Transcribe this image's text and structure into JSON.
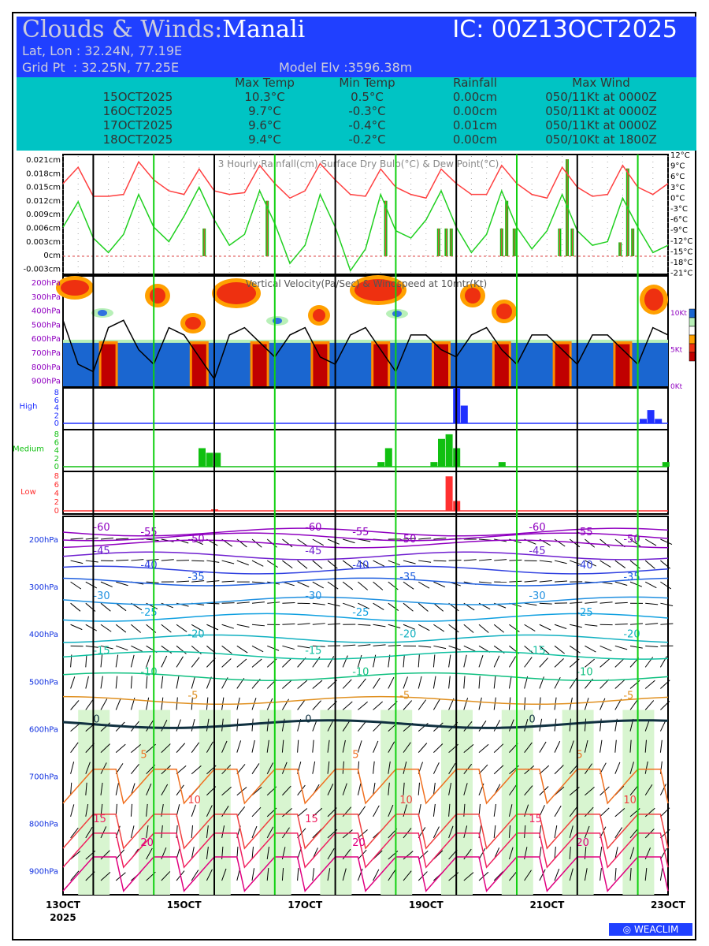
{
  "header": {
    "title_prefix": "Clouds & Winds:",
    "station": "Manali",
    "ic": "IC: 00Z13OCT2025",
    "latlon": "Lat, Lon : 32.24N, 77.19E",
    "gridpt": "Grid Pt  : 32.25N, 77.25E",
    "elev": "Model Elv :3596.38m"
  },
  "table": {
    "headers": [
      "Max Temp",
      "Min Temp",
      "Rainfall",
      "Max Wind"
    ],
    "rows": [
      [
        "15OCT2025",
        "10.3°C",
        "0.5°C",
        "0.00cm",
        "050/11Kt at 0000Z"
      ],
      [
        "16OCT2025",
        "9.7°C",
        "-0.3°C",
        "0.00cm",
        "050/11Kt at 0000Z"
      ],
      [
        "17OCT2025",
        "9.6°C",
        "-0.4°C",
        "0.01cm",
        "050/11Kt at 0000Z"
      ],
      [
        "18OCT2025",
        "9.4°C",
        "-0.2°C",
        "0.00cm",
        "050/10Kt at 1800Z"
      ]
    ]
  },
  "chart_data": [
    {
      "type": "line",
      "title": "3 Hourly Rainfall(cm)  Surface Dry Bulb(°C)   & Dew Point(°C)",
      "x_hours_step": 6,
      "rain_axis": {
        "ticks": [
          "0.021cm",
          "0.018cm",
          "0.015cm",
          "0.012cm",
          "0.009cm",
          "0.006cm",
          "0.003cm",
          "0cm",
          "-0.003cm"
        ],
        "ylim": [
          -0.003,
          0.021
        ]
      },
      "temp_axis": {
        "ticks": [
          "12°C",
          "9°C",
          "6°C",
          "3°C",
          "0°C",
          "-3°C",
          "-6°C",
          "-9°C",
          "-12°C",
          "-15°C",
          "-18°C",
          "-21°C"
        ],
        "ylim": [
          -21,
          12
        ]
      },
      "series": [
        {
          "name": "Dry Bulb",
          "color": "#ff4040",
          "values": [
            4,
            8.5,
            0.5,
            0.5,
            1,
            10,
            5,
            2,
            1,
            8,
            2,
            1,
            1.5,
            9,
            4,
            0,
            2,
            9.5,
            5,
            1,
            0.5,
            8,
            3,
            1,
            0,
            8,
            4,
            1,
            1,
            9,
            4,
            1,
            0,
            8.5,
            3,
            0.5,
            1,
            9,
            3,
            1,
            4
          ]
        },
        {
          "name": "Dew Point",
          "color": "#20d020",
          "values": [
            -8,
            -1,
            -11,
            -15,
            -10,
            1,
            -8,
            -12,
            -5,
            3,
            -6,
            -13,
            -10,
            2,
            -7,
            -18,
            -13,
            1,
            -8,
            -20,
            -14,
            1,
            -9,
            -11,
            -6,
            2,
            -8,
            -15,
            -10,
            2,
            -8,
            -14,
            -9,
            1,
            -9,
            -13,
            -12,
            0,
            -8,
            -15,
            -13
          ]
        }
      ],
      "rain": [
        {
          "h": 56,
          "v": 0.006
        },
        {
          "h": 81,
          "v": 0.012
        },
        {
          "h": 128,
          "v": 0.012
        },
        {
          "h": 149,
          "v": 0.006
        },
        {
          "h": 152,
          "v": 0.006
        },
        {
          "h": 154,
          "v": 0.006
        },
        {
          "h": 174,
          "v": 0.006
        },
        {
          "h": 176,
          "v": 0.012
        },
        {
          "h": 179,
          "v": 0.006
        },
        {
          "h": 197,
          "v": 0.006
        },
        {
          "h": 200,
          "v": 0.021
        },
        {
          "h": 202,
          "v": 0.006
        },
        {
          "h": 221,
          "v": 0.003
        },
        {
          "h": 224,
          "v": 0.019
        },
        {
          "h": 226,
          "v": 0.006
        }
      ]
    },
    {
      "type": "heatmap",
      "title": "Vertical Velocity(Pa/Sec) & Windspeed at 10mtr(Kt)",
      "levels": [
        "200hPa",
        "300hPa",
        "400hPa",
        "500hPa",
        "600hPa",
        "700hPa",
        "800hPa",
        "900hPa"
      ],
      "wind_ticks": [
        "10Kt",
        "5Kt",
        "0Kt"
      ],
      "ascent_hours": [
        18,
        54,
        78,
        102,
        126,
        150,
        174,
        198,
        222
      ],
      "windspeed": [
        9,
        3,
        2,
        8,
        9,
        5,
        3,
        8,
        7,
        4,
        1,
        7,
        8,
        6,
        4,
        7,
        8,
        4,
        3,
        7,
        8,
        5,
        2,
        7,
        7,
        5,
        4,
        7,
        8,
        5,
        3,
        7,
        7,
        5,
        3,
        7,
        7,
        5,
        3,
        8,
        7
      ]
    },
    {
      "type": "bar",
      "title": "High",
      "ticks": [
        "8",
        "6",
        "4",
        "2",
        "0"
      ],
      "color": "#2030ff",
      "bars": [
        {
          "h": 156,
          "v": 8
        },
        {
          "h": 159,
          "v": 4
        },
        {
          "h": 230,
          "v": 1
        },
        {
          "h": 233,
          "v": 3
        },
        {
          "h": 236,
          "v": 1
        }
      ]
    },
    {
      "type": "bar",
      "title": "Medium",
      "ticks": [
        "8",
        "6",
        "4",
        "2",
        "0"
      ],
      "color": "#10c010",
      "bars": [
        {
          "h": 55,
          "v": 4
        },
        {
          "h": 58,
          "v": 3
        },
        {
          "h": 61,
          "v": 3
        },
        {
          "h": 126,
          "v": 1
        },
        {
          "h": 129,
          "v": 4
        },
        {
          "h": 147,
          "v": 1
        },
        {
          "h": 150,
          "v": 6
        },
        {
          "h": 153,
          "v": 7
        },
        {
          "h": 156,
          "v": 4
        },
        {
          "h": 174,
          "v": 1
        },
        {
          "h": 239,
          "v": 1
        }
      ]
    },
    {
      "type": "bar",
      "title": "Low",
      "ticks": [
        "8",
        "6",
        "4",
        "2",
        "0"
      ],
      "color": "#ff3030",
      "bars": [
        {
          "h": 60,
          "v": 0.3
        },
        {
          "h": 153,
          "v": 7
        },
        {
          "h": 156,
          "v": 2
        }
      ]
    },
    {
      "type": "contour",
      "levels": [
        "200hPa",
        "300hPa",
        "400hPa",
        "500hPa",
        "600hPa",
        "700hPa",
        "800hPa",
        "900hPa"
      ],
      "isotherms": [
        {
          "t": "-60",
          "p": 185,
          "c": "#9000c0"
        },
        {
          "t": "-55",
          "p": 195,
          "c": "#9000c0"
        },
        {
          "t": "-50",
          "p": 210,
          "c": "#9000c0"
        },
        {
          "t": "-45",
          "p": 235,
          "c": "#7020d0"
        },
        {
          "t": "-40",
          "p": 265,
          "c": "#3040e0"
        },
        {
          "t": "-35",
          "p": 290,
          "c": "#2060e0"
        },
        {
          "t": "-30",
          "p": 330,
          "c": "#2090e0"
        },
        {
          "t": "-25",
          "p": 365,
          "c": "#10a0e0"
        },
        {
          "t": "-20",
          "p": 410,
          "c": "#10b0c0"
        },
        {
          "t": "-15",
          "p": 445,
          "c": "#10c0a0"
        },
        {
          "t": "-10",
          "p": 490,
          "c": "#10c080"
        },
        {
          "t": "-5",
          "p": 540,
          "c": "#e09020"
        },
        {
          "t": "0",
          "p": 590,
          "c": "#103040"
        },
        {
          "t": "5",
          "p": 665,
          "c": "#f07020"
        },
        {
          "t": "10",
          "p": 760,
          "c": "#f04040"
        },
        {
          "t": "15",
          "p": 800,
          "c": "#f02060"
        },
        {
          "t": "20",
          "p": 850,
          "c": "#e00080"
        }
      ],
      "x_labels": [
        "13OCT",
        "15OCT",
        "17OCT",
        "19OCT",
        "21OCT",
        "23OCT"
      ],
      "year": "2025"
    }
  ],
  "footer": {
    "logo": "WEACLIM"
  }
}
